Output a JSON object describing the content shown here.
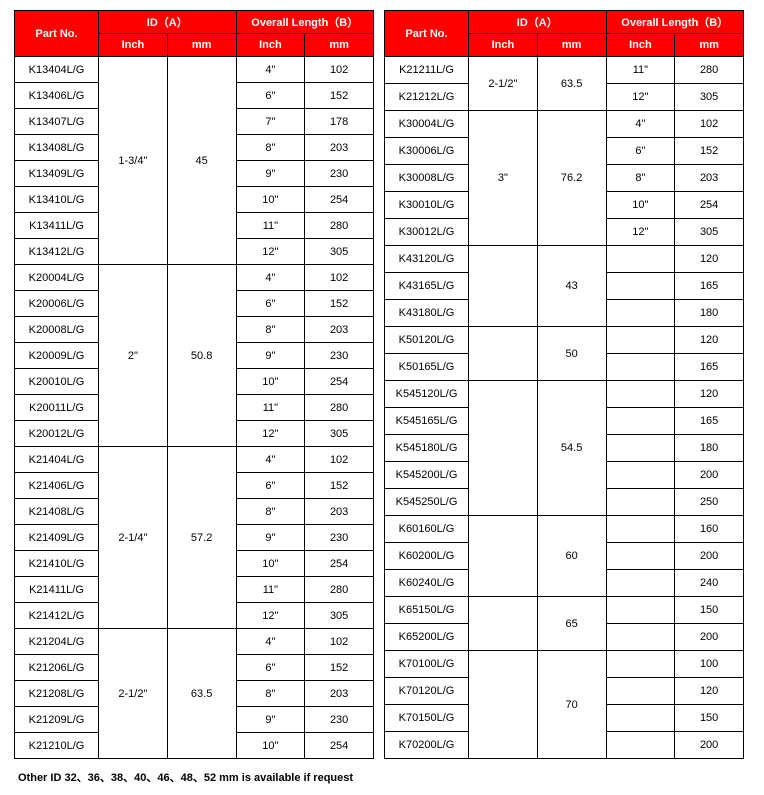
{
  "header": {
    "partNo": "Part No.",
    "idA": "ID（A）",
    "overallLength": "Overall Length（B）",
    "inch": "Inch",
    "mm": "mm"
  },
  "footnote": "Other  ID 32、36、38、40、46、48、52 mm is available if request",
  "leftGroups": [
    {
      "idInch": "1-3/4\"",
      "idMm": "45",
      "rows": [
        {
          "part": "K13404L/G",
          "lenInch": "4\"",
          "lenMm": "102"
        },
        {
          "part": "K13406L/G",
          "lenInch": "6\"",
          "lenMm": "152"
        },
        {
          "part": "K13407L/G",
          "lenInch": "7\"",
          "lenMm": "178"
        },
        {
          "part": "K13408L/G",
          "lenInch": "8\"",
          "lenMm": "203"
        },
        {
          "part": "K13409L/G",
          "lenInch": "9\"",
          "lenMm": "230"
        },
        {
          "part": "K13410L/G",
          "lenInch": "10\"",
          "lenMm": "254"
        },
        {
          "part": "K13411L/G",
          "lenInch": "11\"",
          "lenMm": "280"
        },
        {
          "part": "K13412L/G",
          "lenInch": "12\"",
          "lenMm": "305"
        }
      ]
    },
    {
      "idInch": "2\"",
      "idMm": "50.8",
      "rows": [
        {
          "part": "K20004L/G",
          "lenInch": "4\"",
          "lenMm": "102"
        },
        {
          "part": "K20006L/G",
          "lenInch": "6\"",
          "lenMm": "152"
        },
        {
          "part": "K20008L/G",
          "lenInch": "8\"",
          "lenMm": "203"
        },
        {
          "part": "K20009L/G",
          "lenInch": "9\"",
          "lenMm": "230"
        },
        {
          "part": "K20010L/G",
          "lenInch": "10\"",
          "lenMm": "254"
        },
        {
          "part": "K20011L/G",
          "lenInch": "11\"",
          "lenMm": "280"
        },
        {
          "part": "K20012L/G",
          "lenInch": "12\"",
          "lenMm": "305"
        }
      ]
    },
    {
      "idInch": "2-1/4\"",
      "idMm": "57.2",
      "rows": [
        {
          "part": "K21404L/G",
          "lenInch": "4\"",
          "lenMm": "102"
        },
        {
          "part": "K21406L/G",
          "lenInch": "6\"",
          "lenMm": "152"
        },
        {
          "part": "K21408L/G",
          "lenInch": "8\"",
          "lenMm": "203"
        },
        {
          "part": "K21409L/G",
          "lenInch": "9\"",
          "lenMm": "230"
        },
        {
          "part": "K21410L/G",
          "lenInch": "10\"",
          "lenMm": "254"
        },
        {
          "part": "K21411L/G",
          "lenInch": "11\"",
          "lenMm": "280"
        },
        {
          "part": "K21412L/G",
          "lenInch": "12\"",
          "lenMm": "305"
        }
      ]
    },
    {
      "idInch": "2-1/2\"",
      "idMm": "63.5",
      "rows": [
        {
          "part": "K21204L/G",
          "lenInch": "4\"",
          "lenMm": "102"
        },
        {
          "part": "K21206L/G",
          "lenInch": "6\"",
          "lenMm": "152"
        },
        {
          "part": "K21208L/G",
          "lenInch": "8\"",
          "lenMm": "203"
        },
        {
          "part": "K21209L/G",
          "lenInch": "9\"",
          "lenMm": "230"
        },
        {
          "part": "K21210L/G",
          "lenInch": "10\"",
          "lenMm": "254"
        }
      ]
    }
  ],
  "rightGroups": [
    {
      "idInch": "2-1/2\"",
      "idMm": "63.5",
      "rows": [
        {
          "part": "K21211L/G",
          "lenInch": "11\"",
          "lenMm": "280"
        },
        {
          "part": "K21212L/G",
          "lenInch": "12\"",
          "lenMm": "305"
        }
      ]
    },
    {
      "idInch": "3\"",
      "idMm": "76.2",
      "rows": [
        {
          "part": "K30004L/G",
          "lenInch": "4\"",
          "lenMm": "102"
        },
        {
          "part": "K30006L/G",
          "lenInch": "6\"",
          "lenMm": "152"
        },
        {
          "part": "K30008L/G",
          "lenInch": "8\"",
          "lenMm": "203"
        },
        {
          "part": "K30010L/G",
          "lenInch": "10\"",
          "lenMm": "254"
        },
        {
          "part": "K30012L/G",
          "lenInch": "12\"",
          "lenMm": "305"
        }
      ]
    },
    {
      "idInch": "",
      "idMm": "43",
      "rows": [
        {
          "part": "K43120L/G",
          "lenInch": "",
          "lenMm": "120"
        },
        {
          "part": "K43165L/G",
          "lenInch": "",
          "lenMm": "165"
        },
        {
          "part": "K43180L/G",
          "lenInch": "",
          "lenMm": "180"
        }
      ]
    },
    {
      "idInch": "",
      "idMm": "50",
      "rows": [
        {
          "part": "K50120L/G",
          "lenInch": "",
          "lenMm": "120"
        },
        {
          "part": "K50165L/G",
          "lenInch": "",
          "lenMm": "165"
        }
      ]
    },
    {
      "idInch": "",
      "idMm": "54.5",
      "rows": [
        {
          "part": "K545120L/G",
          "lenInch": "",
          "lenMm": "120"
        },
        {
          "part": "K545165L/G",
          "lenInch": "",
          "lenMm": "165"
        },
        {
          "part": "K545180L/G",
          "lenInch": "",
          "lenMm": "180"
        },
        {
          "part": "K545200L/G",
          "lenInch": "",
          "lenMm": "200"
        },
        {
          "part": "K545250L/G",
          "lenInch": "",
          "lenMm": "250"
        }
      ]
    },
    {
      "idInch": "",
      "idMm": "60",
      "rows": [
        {
          "part": "K60160L/G",
          "lenInch": "",
          "lenMm": "160"
        },
        {
          "part": "K60200L/G",
          "lenInch": "",
          "lenMm": "200"
        },
        {
          "part": "K60240L/G",
          "lenInch": "",
          "lenMm": "240"
        }
      ]
    },
    {
      "idInch": "",
      "idMm": "65",
      "rows": [
        {
          "part": "K65150L/G",
          "lenInch": "",
          "lenMm": "150"
        },
        {
          "part": "K65200L/G",
          "lenInch": "",
          "lenMm": "200"
        }
      ]
    },
    {
      "idInch": "",
      "idMm": "70",
      "rows": [
        {
          "part": "K70100L/G",
          "lenInch": "",
          "lenMm": "100"
        },
        {
          "part": "K70120L/G",
          "lenInch": "",
          "lenMm": "120"
        },
        {
          "part": "K70150L/G",
          "lenInch": "",
          "lenMm": "150"
        },
        {
          "part": "K70200L/G",
          "lenInch": "",
          "lenMm": "200"
        }
      ]
    }
  ]
}
